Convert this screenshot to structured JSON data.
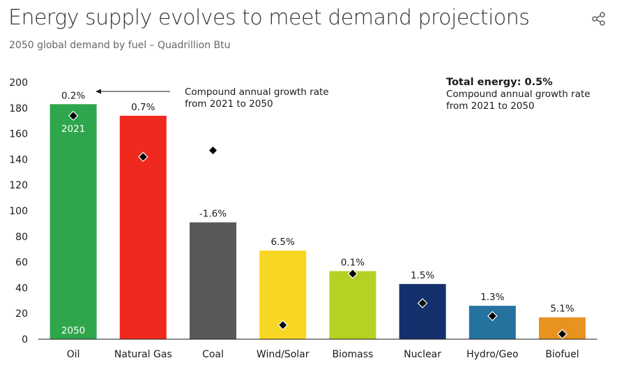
{
  "header": {
    "title": "Energy supply evolves to meet demand projections",
    "subtitle": "2050 global demand by fuel – Quadrillion Btu",
    "share_icon": "share-icon"
  },
  "annotations": {
    "cagr_line1": "Compound annual growth rate",
    "cagr_line2": "from 2021 to 2050",
    "total_title": "Total energy: 0.5%",
    "total_line1": "Compound annual growth rate",
    "total_line2": "from 2021 to 2050",
    "marker_2021": "2021",
    "marker_2050": "2050"
  },
  "chart_data": {
    "type": "bar",
    "categories": [
      "Oil",
      "Natural Gas",
      "Coal",
      "Wind/Solar",
      "Biomass",
      "Nuclear",
      "Hydro/Geo",
      "Biofuel"
    ],
    "series": [
      {
        "name": "2050",
        "values": [
          183,
          174,
          91,
          69,
          53,
          43,
          26,
          17
        ]
      },
      {
        "name": "2021",
        "values": [
          174,
          142,
          147,
          11,
          51,
          28,
          18,
          4
        ]
      }
    ],
    "growth_labels": [
      "0.2%",
      "0.7%",
      "-1.6%",
      "6.5%",
      "0.1%",
      "1.5%",
      "1.3%",
      "5.1%"
    ],
    "colors": [
      "#2ea64b",
      "#f0291f",
      "#595959",
      "#f8d624",
      "#b3d224",
      "#15316d",
      "#25729f",
      "#e89320"
    ],
    "ylim": [
      0,
      200
    ],
    "yticks": [
      0,
      20,
      40,
      60,
      80,
      100,
      120,
      140,
      160,
      180,
      200
    ],
    "grid": false,
    "xlabel": "",
    "ylabel": ""
  }
}
